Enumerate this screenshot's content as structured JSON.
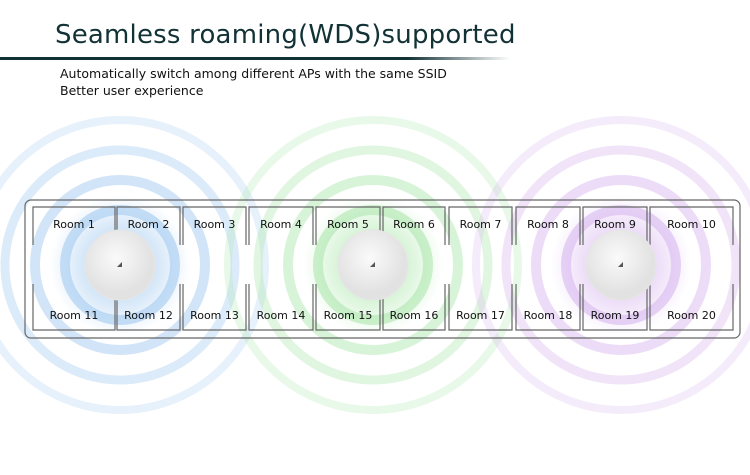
{
  "header": {
    "title": "Seamless roaming(WDS)supported",
    "lines": [
      "Automatically switch among different APs with the same SSID",
      "Better user experience"
    ]
  },
  "rooms_top": [
    "Room 1",
    "Room 2",
    "Room 3",
    "Room 4",
    "Room 5",
    "Room 6",
    "Room 7",
    "Room 8",
    "Room 9",
    "Room 10"
  ],
  "rooms_bottom": [
    "Room 11",
    "Room 12",
    "Room 13",
    "Room 14",
    "Room 15",
    "Room 16",
    "Room 17",
    "Room 18",
    "Room 19",
    "Room 20"
  ],
  "access_points": [
    {
      "icon": "ceiling-ap-icon",
      "signal_color": "#9cc6ef"
    },
    {
      "icon": "ceiling-ap-icon",
      "signal_color": "#a8e6a8"
    },
    {
      "icon": "ceiling-ap-icon",
      "signal_color": "#d6b2ee"
    }
  ]
}
